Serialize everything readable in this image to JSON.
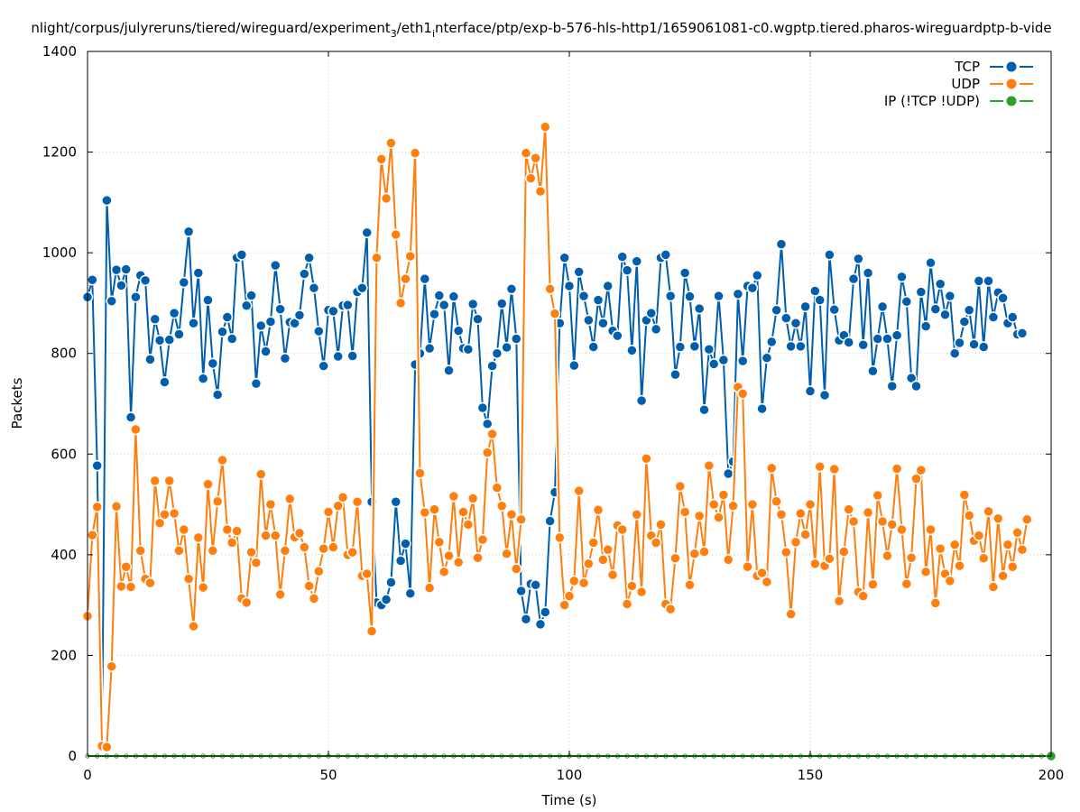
{
  "chart_data": {
    "type": "line",
    "title": "nlight/corpus/julyreruns/tiered/wireguard/experiment_3/eth1_interface/ptp/exp-b-576-hls-http1/1659061081-c0.wgptp.tiered.pharos-wireguardptp-b-vide",
    "title_parts": {
      "a": "nlight/corpus/julyreruns/tiered/wireguard/experiment",
      "sub1": "3",
      "b": "/eth1",
      "sub2": "i",
      "c": "nterface/ptp/exp-b-576-hls-http1/1659061081-c0.wgptp.tiered.pharos-wireguardptp-b-vide"
    },
    "xlabel": "Time (s)",
    "ylabel": "Packets",
    "xlim": [
      0,
      200
    ],
    "ylim": [
      0,
      1400
    ],
    "xticks": [
      0,
      50,
      100,
      150,
      200
    ],
    "yticks": [
      0,
      200,
      400,
      600,
      800,
      1000,
      1200,
      1400
    ],
    "grid": true,
    "legend_position": "top-right",
    "series": [
      {
        "name": "TCP",
        "color": "#005ead",
        "x_step": 1,
        "values": [
          912,
          946,
          577,
          20,
          1104,
          904,
          966,
          935,
          967,
          673,
          912,
          955,
          945,
          788,
          868,
          826,
          743,
          827,
          880,
          838,
          941,
          1042,
          860,
          960,
          750,
          906,
          780,
          718,
          843,
          872,
          829,
          990,
          996,
          895,
          915,
          740,
          855,
          804,
          863,
          975,
          888,
          790,
          862,
          860,
          876,
          958,
          990,
          930,
          844,
          775,
          886,
          884,
          794,
          895,
          896,
          795,
          922,
          930,
          1040,
          505,
          305,
          300,
          311,
          345,
          505,
          388,
          422,
          323,
          778,
          800,
          948,
          810,
          878,
          915,
          896,
          766,
          913,
          845,
          810,
          808,
          898,
          868,
          692,
          660,
          775,
          800,
          899,
          812,
          928,
          829,
          328,
          272,
          342,
          340,
          262,
          286,
          467,
          524,
          860,
          990,
          934,
          776,
          962,
          914,
          866,
          813,
          906,
          860,
          934,
          845,
          835,
          992,
          965,
          806,
          983,
          706,
          866,
          880,
          848,
          990,
          996,
          914,
          758,
          813,
          960,
          913,
          814,
          889,
          688,
          808,
          779,
          914,
          787,
          561,
          585,
          918,
          785,
          934,
          930,
          955,
          690,
          791,
          823,
          886,
          1017,
          870,
          814,
          860,
          814,
          893,
          725,
          924,
          906,
          717,
          996,
          887,
          826,
          836,
          822,
          948,
          988,
          817,
          960,
          765,
          829,
          893,
          829,
          735,
          836,
          952,
          903,
          751,
          735,
          922,
          854,
          980,
          888,
          938,
          877,
          914,
          800,
          821,
          863,
          886,
          818,
          944,
          813,
          944,
          872,
          921,
          910,
          860,
          872,
          838,
          840
        ]
      },
      {
        "name": "UDP",
        "color": "#ff7f0e",
        "x_step": 1,
        "values": [
          278,
          439,
          495,
          20,
          18,
          178,
          496,
          337,
          376,
          336,
          649,
          408,
          352,
          344,
          547,
          463,
          480,
          547,
          482,
          408,
          450,
          352,
          258,
          434,
          335,
          540,
          408,
          506,
          588,
          450,
          424,
          447,
          313,
          305,
          405,
          384,
          560,
          438,
          500,
          438,
          321,
          408,
          511,
          435,
          443,
          415,
          338,
          313,
          367,
          412,
          485,
          415,
          497,
          514,
          400,
          405,
          505,
          358,
          362,
          248,
          990,
          1186,
          1108,
          1218,
          1036,
          900,
          948,
          993,
          1198,
          562,
          484,
          334,
          490,
          425,
          366,
          398,
          516,
          385,
          485,
          460,
          512,
          394,
          430,
          603,
          640,
          533,
          497,
          402,
          480,
          372,
          470,
          1198,
          1148,
          1188,
          1122,
          1250,
          928,
          879,
          434,
          300,
          318,
          348,
          527,
          344,
          382,
          424,
          489,
          390,
          410,
          360,
          458,
          450,
          302,
          338,
          480,
          326,
          591,
          438,
          424,
          460,
          302,
          292,
          393,
          536,
          485,
          340,
          402,
          477,
          406,
          577,
          500,
          474,
          519,
          390,
          497,
          733,
          720,
          376,
          500,
          358,
          364,
          346,
          572,
          506,
          480,
          405,
          282,
          425,
          482,
          440,
          500,
          382,
          575,
          378,
          392,
          570,
          308,
          406,
          490,
          466,
          326,
          318,
          484,
          341,
          518,
          466,
          398,
          460,
          571,
          450,
          342,
          394,
          551,
          568,
          366,
          450,
          304,
          412,
          362,
          348,
          420,
          378,
          519,
          478,
          428,
          438,
          393,
          486,
          336,
          472,
          358,
          420,
          376,
          444,
          410,
          470
        ]
      },
      {
        "name": "IP (!TCP  !UDP)",
        "color": "#2ca02c",
        "x_step": 2,
        "values": [
          0,
          0,
          0,
          0,
          0,
          0,
          0,
          0,
          0,
          0,
          0,
          0,
          0,
          0,
          0,
          0,
          0,
          0,
          0,
          0,
          0,
          0,
          0,
          0,
          0,
          0,
          0,
          0,
          0,
          0,
          0,
          0,
          0,
          0,
          0,
          0,
          0,
          0,
          0,
          0,
          0,
          0,
          0,
          0,
          0,
          0,
          0,
          0,
          0,
          0,
          0,
          0,
          0,
          0,
          0,
          0,
          0,
          0,
          0,
          0,
          0,
          0,
          0,
          0,
          0,
          0,
          0,
          0,
          0,
          0,
          0,
          0,
          0,
          0,
          0,
          0,
          0,
          0,
          0,
          0,
          0,
          0,
          0,
          0,
          0,
          0,
          0,
          0,
          0,
          0,
          0,
          0,
          0,
          0,
          0,
          0,
          0,
          0,
          0,
          0,
          0
        ]
      }
    ]
  }
}
